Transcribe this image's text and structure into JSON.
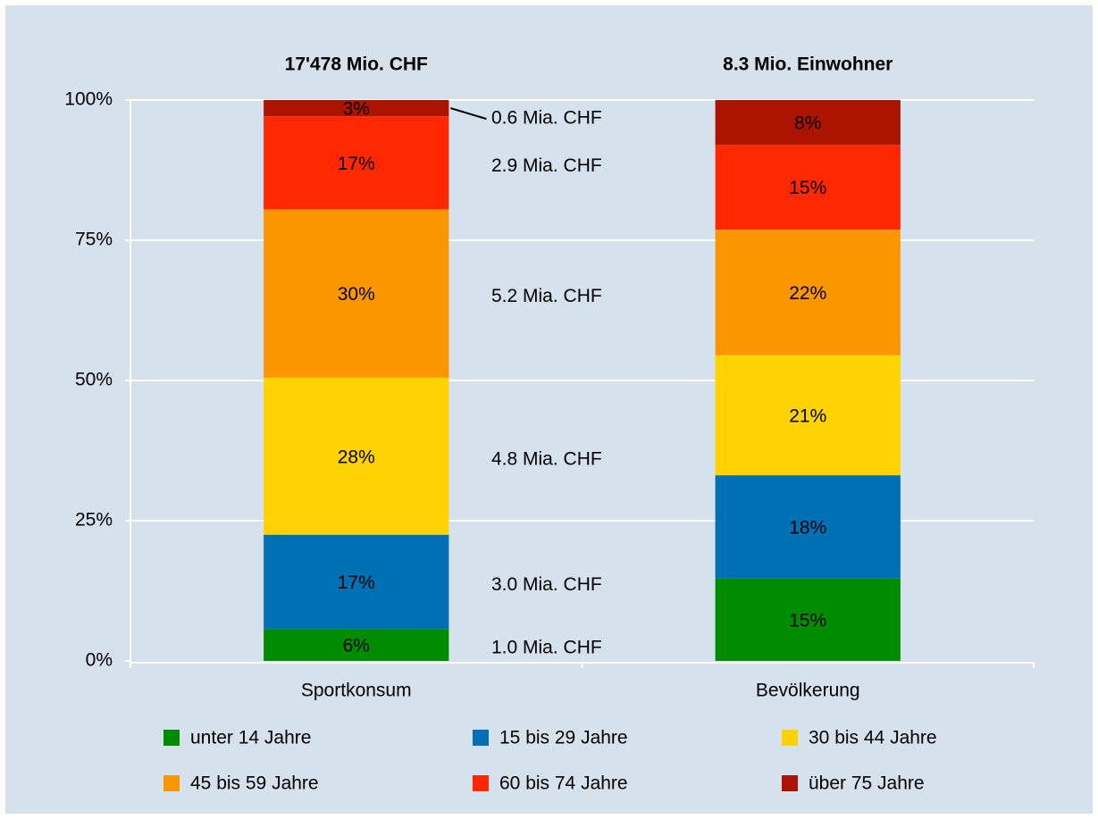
{
  "chart_data": {
    "type": "stacked_bar",
    "categories": [
      "Sportkonsum",
      "Bevölkerung"
    ],
    "bar_titles": [
      "17'478 Mio. CHF",
      "8.3 Mio. Einwohner"
    ],
    "series": [
      {
        "name": "unter 14 Jahre",
        "color": "#008c00",
        "label_color": "#ffffff",
        "values": [
          5.7,
          14.7
        ],
        "value_labels": [
          "6%",
          "15%"
        ]
      },
      {
        "name": "15 bis 29 Jahre",
        "color": "#0070b4",
        "label_color": "#ffffff",
        "values": [
          16.8,
          18.4
        ],
        "value_labels": [
          "17%",
          "18%"
        ]
      },
      {
        "name": "30 bis 44 Jahre",
        "color": "#ffd200",
        "label_color": "#000000",
        "values": [
          28.0,
          21.4
        ],
        "value_labels": [
          "28%",
          "21%"
        ]
      },
      {
        "name": "45 bis 59 Jahre",
        "color": "#fa9600",
        "label_color": "#ffffff",
        "values": [
          30.0,
          22.4
        ],
        "value_labels": [
          "30%",
          "22%"
        ]
      },
      {
        "name": "60 bis 74 Jahre",
        "color": "#ff2800",
        "label_color": "#ffffff",
        "values": [
          16.6,
          15.1
        ],
        "value_labels": [
          "17%",
          "15%"
        ]
      },
      {
        "name": "über 75 Jahre",
        "color": "#aa1400",
        "label_color": "#ffffff",
        "values": [
          2.9,
          8.0
        ],
        "value_labels": [
          "3%",
          "8%"
        ]
      }
    ],
    "annotations": [
      "1.0 Mia. CHF",
      "3.0 Mia. CHF",
      "4.8 Mia. CHF",
      "5.2 Mia. CHF",
      "2.9 Mia. CHF",
      "0.6 Mia. CHF"
    ],
    "ylim": [
      0,
      100
    ],
    "yticks": [
      {
        "value": 0,
        "label": "0%"
      },
      {
        "value": 25,
        "label": "25%"
      },
      {
        "value": 50,
        "label": "50%"
      },
      {
        "value": 75,
        "label": "75%"
      },
      {
        "value": 100,
        "label": "100%"
      }
    ],
    "grid": true
  }
}
